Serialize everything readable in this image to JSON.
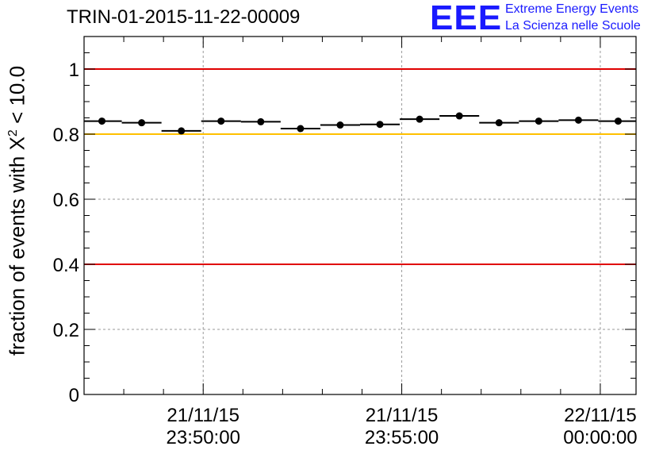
{
  "chart_data": {
    "type": "scatter",
    "title": "TRIN-01-2015-11-22-00009",
    "ylabel_prefix": "fraction of events with X",
    "ylabel_sup": "2",
    "ylabel_suffix": " < 10.0",
    "xlabel": "",
    "ylim": [
      0,
      1.1
    ],
    "y_ticks": [
      0,
      0.2,
      0.4,
      0.6,
      0.8,
      1
    ],
    "y_tick_labels": [
      "0",
      "0.2",
      "0.4",
      "0.6",
      "0.8",
      "1"
    ],
    "x_minutes_range": [
      -3.0,
      10.9
    ],
    "x_major_ticks": [
      {
        "minute": 0,
        "line1": "21/11/15",
        "line2": "23:50:00"
      },
      {
        "minute": 5,
        "line1": "21/11/15",
        "line2": "23:55:00"
      },
      {
        "minute": 10,
        "line1": "22/11/15",
        "line2": "00:00:00"
      }
    ],
    "reference_lines": [
      {
        "y": 1.0,
        "color": "#e00000"
      },
      {
        "y": 0.8,
        "color": "#ffc000"
      },
      {
        "y": 0.4,
        "color": "#e00000"
      }
    ],
    "points": [
      {
        "x": -2.55,
        "y": 0.84
      },
      {
        "x": -1.55,
        "y": 0.835
      },
      {
        "x": -0.55,
        "y": 0.81
      },
      {
        "x": 0.45,
        "y": 0.84
      },
      {
        "x": 1.45,
        "y": 0.838
      },
      {
        "x": 2.45,
        "y": 0.817
      },
      {
        "x": 3.45,
        "y": 0.828
      },
      {
        "x": 4.45,
        "y": 0.83
      },
      {
        "x": 5.45,
        "y": 0.846
      },
      {
        "x": 6.45,
        "y": 0.856
      },
      {
        "x": 7.45,
        "y": 0.835
      },
      {
        "x": 8.45,
        "y": 0.84
      },
      {
        "x": 9.45,
        "y": 0.843
      },
      {
        "x": 10.45,
        "y": 0.84
      }
    ],
    "bin_half_width_minutes": 0.5
  },
  "logo": {
    "mark": "EEE",
    "line1": "Extreme Energy Events",
    "line2": "La Scienza nelle Scuole"
  },
  "colors": {
    "logo_blue": "#1a1aff",
    "grid": "#9a9a9a",
    "marker": "#000000"
  }
}
